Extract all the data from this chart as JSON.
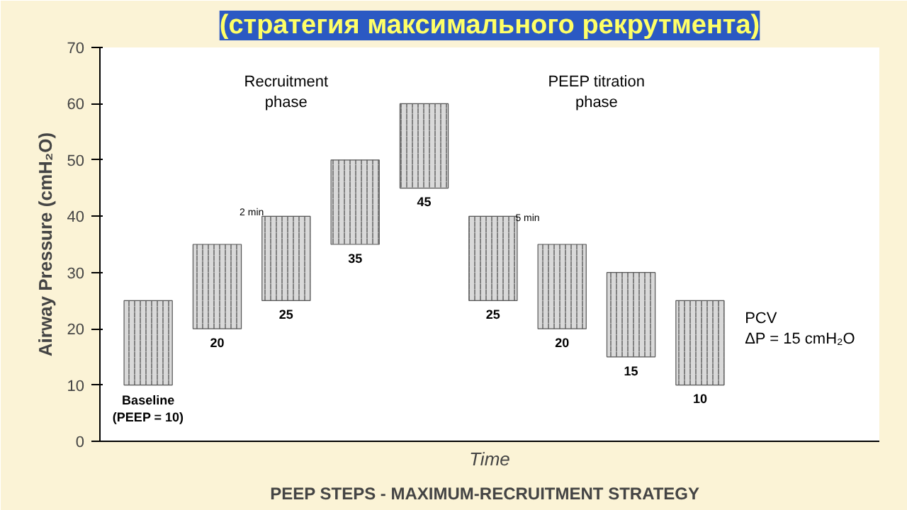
{
  "chart_data": {
    "type": "bar",
    "title": "(стратегия максимального рекрутмента)",
    "ylabel": "Airway Pressure (cmH₂O)",
    "xlabel": "Time",
    "categories": [
      null,
      null,
      null,
      null,
      null,
      null,
      null,
      null,
      null
    ],
    "base": [
      10,
      20,
      25,
      35,
      45,
      25,
      20,
      15,
      10
    ],
    "values": [
      15,
      15,
      15,
      15,
      15,
      15,
      15,
      15,
      15
    ],
    "color": "#d9d9d9",
    "ylim": [
      0,
      70
    ],
    "yticks": [
      0,
      10,
      20,
      30,
      40,
      50,
      60,
      70
    ],
    "grid": false,
    "tick_labels": "y",
    "annotations": [
      {
        "text": "Baseline\n(PEEP = 10)",
        "y": 10
      },
      {
        "text": "20",
        "y": 20
      },
      {
        "text": "25",
        "y": 25
      },
      {
        "text": "35",
        "y": 35
      },
      {
        "text": "45",
        "y": 45
      },
      {
        "text": "25",
        "y": 25
      },
      {
        "text": "20",
        "y": 20
      },
      {
        "text": "15",
        "y": 15
      },
      {
        "text": "10",
        "y": 10
      },
      "Recruitment\nphase",
      "PEEP titration\nphase",
      "2 min",
      "5 min",
      "PCV\nΔP = 15 cmH₂O",
      "PEEP STEPS  -  MAXIMUM-RECRUITMENT STRATEGY"
    ]
  }
}
